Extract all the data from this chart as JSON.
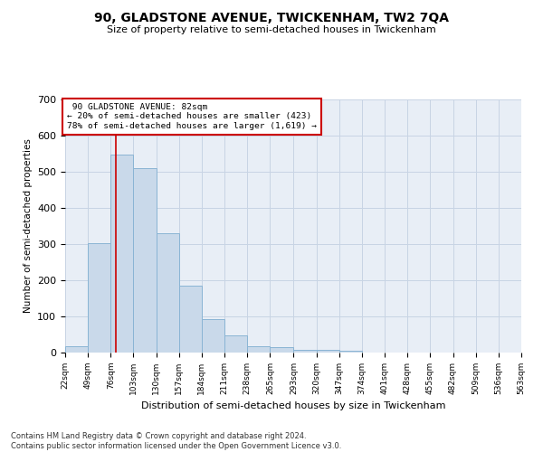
{
  "title": "90, GLADSTONE AVENUE, TWICKENHAM, TW2 7QA",
  "subtitle": "Size of property relative to semi-detached houses in Twickenham",
  "xlabel": "Distribution of semi-detached houses by size in Twickenham",
  "ylabel": "Number of semi-detached properties",
  "footer_line1": "Contains HM Land Registry data © Crown copyright and database right 2024.",
  "footer_line2": "Contains public sector information licensed under the Open Government Licence v3.0.",
  "bar_color": "#c9d9ea",
  "bar_edge_color": "#8ab4d4",
  "grid_color": "#c8d4e4",
  "bg_color": "#e8eef6",
  "red_line_color": "#cc0000",
  "annotation_box_color": "#cc0000",
  "property_size": 82,
  "property_label": "90 GLADSTONE AVENUE: 82sqm",
  "smaller_pct": 20,
  "smaller_count": 423,
  "larger_pct": 78,
  "larger_count": 1619,
  "bin_edges": [
    22,
    49,
    76,
    103,
    130,
    157,
    184,
    211,
    238,
    265,
    293,
    320,
    347,
    374,
    401,
    428,
    455,
    482,
    509,
    536,
    563
  ],
  "bin_counts": [
    18,
    302,
    548,
    510,
    330,
    185,
    93,
    48,
    18,
    16,
    8,
    8,
    5,
    0,
    0,
    0,
    0,
    0,
    0,
    0
  ],
  "ylim": [
    0,
    700
  ],
  "yticks": [
    0,
    100,
    200,
    300,
    400,
    500,
    600,
    700
  ]
}
